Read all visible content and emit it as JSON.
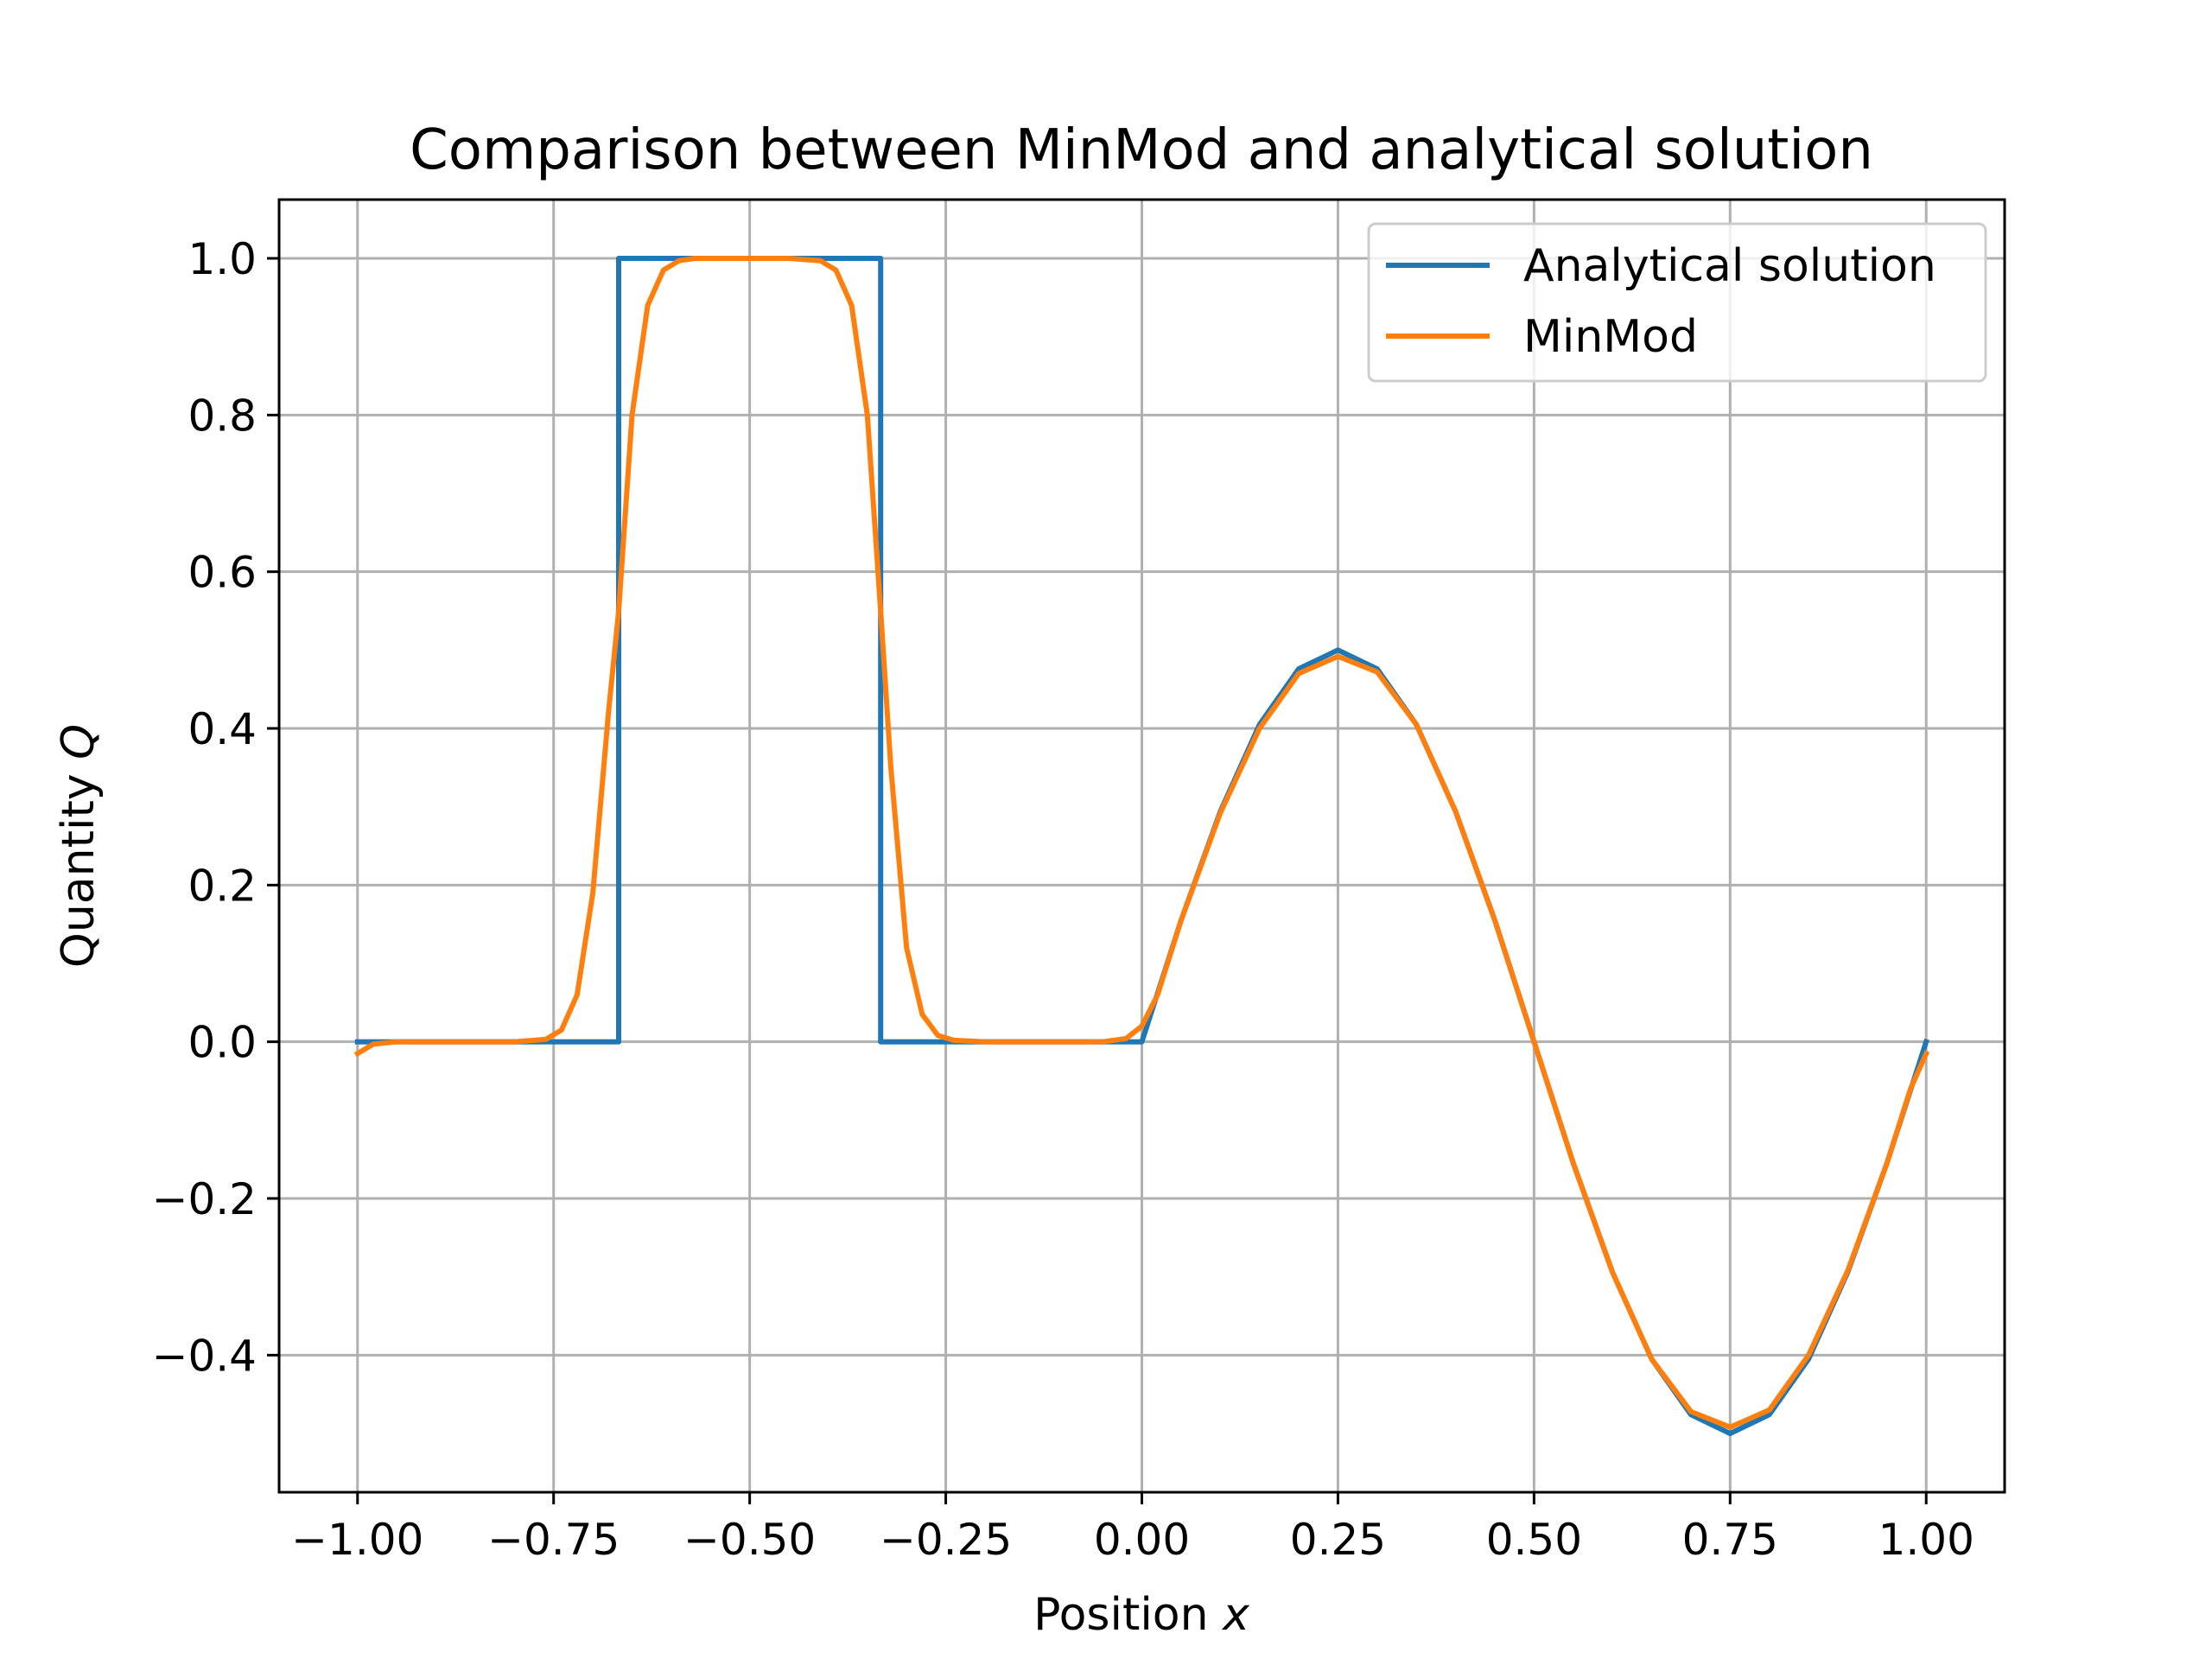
{
  "chart_data": {
    "type": "line",
    "title": "Comparison between MinMod and analytical solution",
    "xlabel": "Position",
    "xlabel_var": "x",
    "ylabel": "Quantity",
    "ylabel_var": "Q",
    "xlim": [
      -1.1,
      1.1
    ],
    "ylim": [
      -0.575,
      1.075
    ],
    "xticks": [
      -1.0,
      -0.75,
      -0.5,
      -0.25,
      0.0,
      0.25,
      0.5,
      0.75,
      1.0
    ],
    "xtick_labels": [
      "−1.00",
      "−0.75",
      "−0.50",
      "−0.25",
      "0.00",
      "0.25",
      "0.50",
      "0.75",
      "1.00"
    ],
    "yticks": [
      -0.4,
      -0.2,
      0.0,
      0.2,
      0.4,
      0.6,
      0.8,
      1.0
    ],
    "ytick_labels": [
      "−0.4",
      "−0.2",
      "0.0",
      "0.2",
      "0.4",
      "0.6",
      "0.8",
      "1.0"
    ],
    "grid": true,
    "legend_position": "top-right",
    "series": [
      {
        "name": "Analytical solution",
        "color": "#1f77b4",
        "x": [
          -1.0,
          -0.667,
          -0.667,
          -0.333,
          -0.333,
          0.0,
          0.05,
          0.1,
          0.15,
          0.2,
          0.25,
          0.3,
          0.35,
          0.4,
          0.45,
          0.5,
          0.55,
          0.6,
          0.65,
          0.7,
          0.75,
          0.8,
          0.85,
          0.9,
          0.95,
          1.0
        ],
        "y": [
          0.0,
          0.0,
          1.0,
          1.0,
          0.0,
          0.0,
          0.155,
          0.294,
          0.405,
          0.476,
          0.5,
          0.476,
          0.405,
          0.294,
          0.155,
          0.0,
          -0.155,
          -0.294,
          -0.405,
          -0.476,
          -0.5,
          -0.476,
          -0.405,
          -0.294,
          -0.155,
          0.0
        ]
      },
      {
        "name": "MinMod",
        "color": "#ff7f0e",
        "x": [
          -1.0,
          -0.98,
          -0.95,
          -0.9,
          -0.85,
          -0.8,
          -0.76,
          -0.74,
          -0.72,
          -0.7,
          -0.68,
          -0.667,
          -0.65,
          -0.63,
          -0.61,
          -0.59,
          -0.57,
          -0.55,
          -0.5,
          -0.45,
          -0.41,
          -0.39,
          -0.37,
          -0.35,
          -0.333,
          -0.32,
          -0.3,
          -0.28,
          -0.26,
          -0.24,
          -0.2,
          -0.15,
          -0.1,
          -0.05,
          -0.02,
          0.0,
          0.02,
          0.05,
          0.1,
          0.15,
          0.2,
          0.25,
          0.3,
          0.35,
          0.4,
          0.45,
          0.5,
          0.55,
          0.6,
          0.65,
          0.7,
          0.75,
          0.8,
          0.85,
          0.9,
          0.95,
          0.98,
          1.0
        ],
        "y": [
          -0.015,
          -0.003,
          0.0,
          0.0,
          0.0,
          0.0,
          0.003,
          0.015,
          0.06,
          0.19,
          0.42,
          0.55,
          0.8,
          0.94,
          0.985,
          0.997,
          1.0,
          1.0,
          1.0,
          1.0,
          0.997,
          0.985,
          0.94,
          0.8,
          0.55,
          0.35,
          0.12,
          0.035,
          0.008,
          0.002,
          0.0,
          0.0,
          0.0,
          0.0,
          0.004,
          0.02,
          0.06,
          0.155,
          0.292,
          0.4,
          0.47,
          0.492,
          0.472,
          0.405,
          0.294,
          0.155,
          0.0,
          -0.155,
          -0.294,
          -0.405,
          -0.472,
          -0.492,
          -0.47,
          -0.4,
          -0.292,
          -0.155,
          -0.06,
          -0.015
        ]
      }
    ]
  }
}
